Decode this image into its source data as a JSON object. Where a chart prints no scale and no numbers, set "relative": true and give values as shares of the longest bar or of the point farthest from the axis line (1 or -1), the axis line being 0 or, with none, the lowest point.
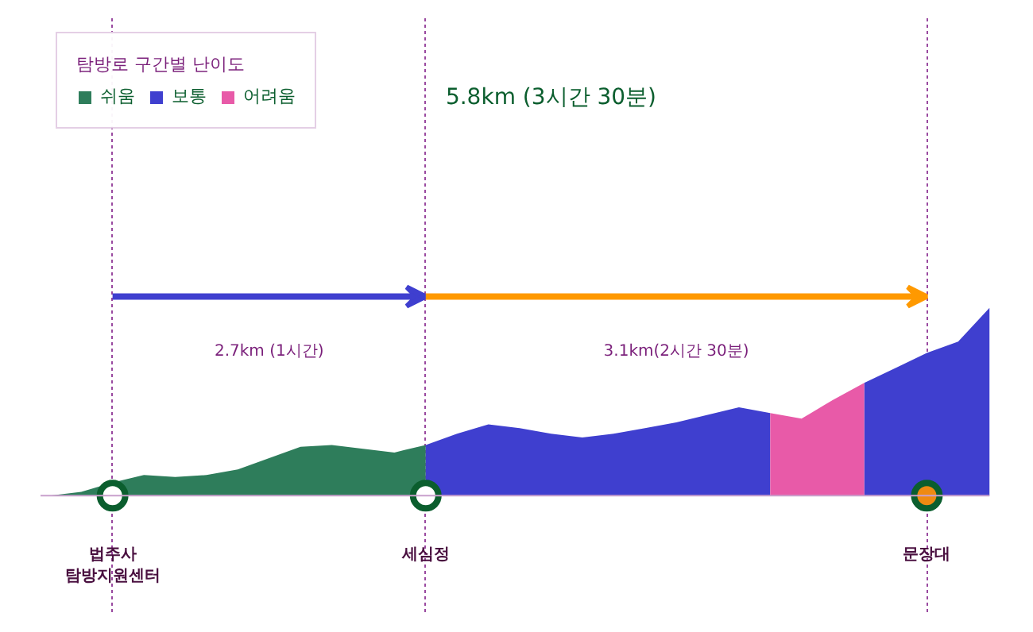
{
  "chart_data": {
    "type": "area",
    "relative": true,
    "title": "5.8km (3시간 30분)",
    "legend_title": "탐방로 구간별 난이도",
    "legend": "top left",
    "grid": "x",
    "categories": [
      null,
      null,
      "법주사\n탐방지원센터",
      null,
      null,
      null,
      null,
      null,
      null,
      null,
      null,
      null,
      "세심정",
      null,
      null,
      null,
      null,
      null,
      null,
      null,
      null,
      null,
      null,
      null,
      null,
      null,
      null,
      null,
      "문장대",
      null,
      null
    ],
    "series": [
      {
        "name": "쉬움",
        "color": "#2e7d5b",
        "values": [
          0,
          0.02,
          0.07,
          0.11,
          0.1,
          0.11,
          0.14,
          0.2,
          0.26,
          0.27,
          0.25,
          0.23,
          0.27,
          null,
          null,
          null,
          null,
          null,
          null,
          null,
          null,
          null,
          null,
          null,
          null,
          null,
          null,
          null,
          null,
          null,
          null
        ]
      },
      {
        "name": "보통",
        "color": "#3f3fcf",
        "values": [
          null,
          null,
          null,
          null,
          null,
          null,
          null,
          null,
          null,
          null,
          null,
          null,
          0.27,
          0.33,
          0.38,
          0.36,
          0.33,
          0.31,
          0.33,
          0.36,
          0.39,
          0.43,
          0.47,
          0.44,
          null,
          null,
          0.6,
          0.68,
          0.76,
          0.82,
          1
        ]
      },
      {
        "name": "어려움",
        "color": "#e85aa8",
        "values": [
          null,
          null,
          null,
          null,
          null,
          null,
          null,
          null,
          null,
          null,
          null,
          null,
          null,
          null,
          null,
          null,
          null,
          null,
          null,
          null,
          null,
          null,
          null,
          0.44,
          0.41,
          0.51,
          0.6,
          null,
          null,
          null,
          null
        ]
      },
      {
        "type": "scatter",
        "marker": "circle",
        "color": "#0b5e2e",
        "colors": [
          null,
          null,
          "#ffffff",
          null,
          null,
          null,
          null,
          null,
          null,
          null,
          null,
          null,
          "#ffffff",
          null,
          null,
          null,
          null,
          null,
          null,
          null,
          null,
          null,
          null,
          null,
          null,
          null,
          null,
          null,
          "#ef8a12",
          null,
          null
        ],
        "values": [
          null,
          null,
          0,
          null,
          null,
          null,
          null,
          null,
          null,
          null,
          null,
          null,
          0,
          null,
          null,
          null,
          null,
          null,
          null,
          null,
          null,
          null,
          null,
          null,
          null,
          null,
          null,
          null,
          0,
          null,
          null
        ]
      }
    ],
    "annotations": [
      "2.7km (1시간)",
      "3.1km(2시간 30분)"
    ]
  }
}
